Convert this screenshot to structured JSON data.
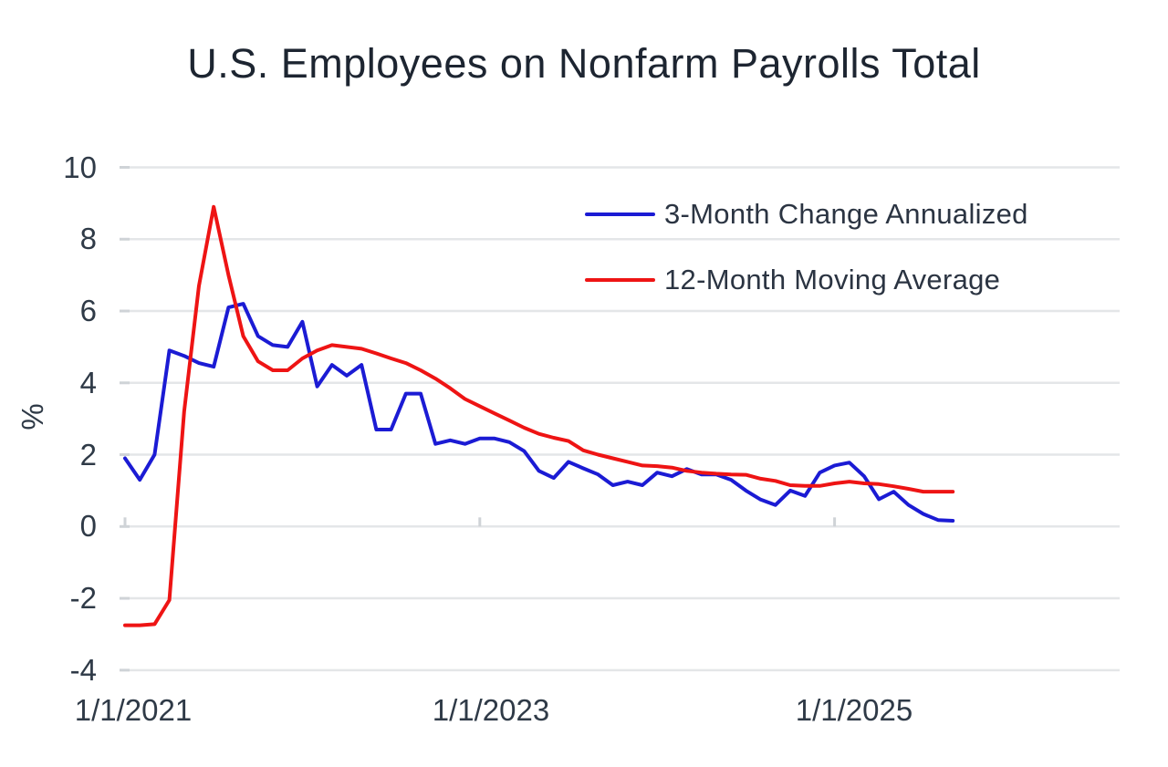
{
  "title": "U.S. Employees on Nonfarm Payrolls Total",
  "legend": {
    "position": "top-right-inside",
    "items": [
      {
        "label": "3-Month Change Annualized",
        "color": "#1b1bd4"
      },
      {
        "label": "12-Month Moving Average",
        "color": "#ee1414"
      }
    ]
  },
  "y_axis": {
    "title": "%",
    "tick_labels": [
      "10",
      "8",
      "6",
      "4",
      "2",
      "0",
      "-2",
      "-4"
    ],
    "tick_values": [
      10,
      8,
      6,
      4,
      2,
      0,
      -2,
      -4
    ]
  },
  "x_axis": {
    "tick_labels": [
      "1/1/2021",
      "1/1/2023",
      "1/1/2025"
    ],
    "tick_month_index": [
      0,
      24,
      48
    ]
  },
  "colors": {
    "background": "#ffffff",
    "gridline": "#e4e6e8",
    "tick_stub": "#cfd3d7",
    "title_text": "#1d2531",
    "axis_text": "#2f3a47",
    "legend_text": "#2b3442",
    "series_blue": "#1b1bd4",
    "series_red": "#ee1414"
  },
  "chart_data": {
    "type": "line",
    "title": "U.S. Employees on Nonfarm Payrolls Total",
    "xlabel": "",
    "ylabel": "%",
    "ylim": [
      -4,
      10
    ],
    "grid": "horizontal",
    "legend_position": "top-right-inside",
    "x_frequency": "monthly",
    "x_start": "1/2021",
    "x_end": "9/2025",
    "x_ticks": [
      "1/1/2021",
      "1/1/2023",
      "1/1/2025"
    ],
    "series": [
      {
        "name": "3-Month Change Annualized",
        "color": "#1b1bd4",
        "values": [
          1.9,
          1.3,
          2.0,
          4.9,
          4.75,
          4.55,
          4.45,
          6.1,
          6.2,
          5.3,
          5.05,
          5.0,
          5.7,
          3.9,
          4.5,
          4.2,
          4.5,
          2.7,
          2.7,
          3.7,
          3.7,
          2.3,
          2.4,
          2.3,
          2.45,
          2.45,
          2.35,
          2.1,
          1.55,
          1.35,
          1.8,
          1.62,
          1.45,
          1.15,
          1.25,
          1.15,
          1.5,
          1.4,
          1.6,
          1.45,
          1.45,
          1.3,
          1.0,
          0.75,
          0.6,
          1.0,
          0.85,
          1.5,
          1.7,
          1.78,
          1.4,
          0.76,
          0.97,
          0.6,
          0.35,
          0.18,
          0.16
        ]
      },
      {
        "name": "12-Month Moving Average",
        "color": "#ee1414",
        "values": [
          -2.75,
          -2.75,
          -2.72,
          -2.05,
          3.2,
          6.7,
          8.9,
          7.0,
          5.3,
          4.6,
          4.35,
          4.35,
          4.68,
          4.9,
          5.05,
          5.0,
          4.95,
          4.82,
          4.68,
          4.55,
          4.35,
          4.12,
          3.85,
          3.55,
          3.35,
          3.15,
          2.95,
          2.75,
          2.58,
          2.47,
          2.38,
          2.12,
          2.0,
          1.9,
          1.8,
          1.7,
          1.68,
          1.64,
          1.55,
          1.5,
          1.47,
          1.45,
          1.44,
          1.33,
          1.27,
          1.15,
          1.13,
          1.13,
          1.2,
          1.25,
          1.2,
          1.18,
          1.12,
          1.05,
          0.97,
          0.97,
          0.97
        ]
      }
    ]
  }
}
